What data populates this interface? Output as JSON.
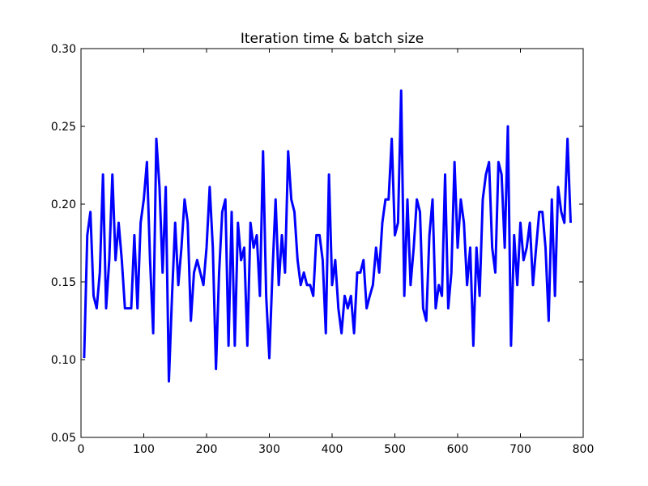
{
  "chart_data": {
    "type": "line",
    "title": "Iteration time & batch size",
    "xlabel": "",
    "ylabel": "",
    "xlim": [
      0,
      800
    ],
    "ylim": [
      0.05,
      0.3
    ],
    "xticks": [
      0,
      100,
      200,
      300,
      400,
      500,
      600,
      700,
      800
    ],
    "yticks": [
      0.05,
      0.1,
      0.15,
      0.2,
      0.25,
      0.3
    ],
    "xtick_labels": [
      "0",
      "100",
      "200",
      "300",
      "400",
      "500",
      "600",
      "700",
      "800"
    ],
    "ytick_labels": [
      "0.05",
      "0.10",
      "0.15",
      "0.20",
      "0.25",
      "0.30"
    ],
    "grid": false,
    "series": [
      {
        "color": "#0000ff",
        "x": [
          5,
          10,
          15,
          20,
          25,
          30,
          35,
          40,
          45,
          50,
          55,
          60,
          65,
          70,
          75,
          80,
          85,
          90,
          95,
          100,
          105,
          110,
          115,
          120,
          125,
          130,
          135,
          140,
          145,
          150,
          155,
          160,
          165,
          170,
          175,
          180,
          185,
          190,
          195,
          200,
          205,
          210,
          215,
          220,
          225,
          230,
          235,
          240,
          245,
          250,
          255,
          260,
          265,
          270,
          275,
          280,
          285,
          290,
          295,
          300,
          305,
          310,
          315,
          320,
          325,
          330,
          335,
          340,
          345,
          350,
          355,
          360,
          365,
          370,
          375,
          380,
          385,
          390,
          395,
          400,
          405,
          410,
          415,
          420,
          425,
          430,
          435,
          440,
          445,
          450,
          455,
          460,
          465,
          470,
          475,
          480,
          485,
          490,
          495,
          500,
          505,
          510,
          515,
          520,
          525,
          530,
          535,
          540,
          545,
          550,
          555,
          560,
          565,
          570,
          575,
          580,
          585,
          590,
          595,
          600,
          605,
          610,
          615,
          620,
          625,
          630,
          635,
          640,
          645,
          650,
          655,
          660,
          665,
          670,
          675,
          680,
          685,
          690,
          695,
          700,
          705,
          710,
          715,
          720,
          725,
          730,
          735,
          740,
          745,
          750,
          755,
          760,
          765,
          770,
          775,
          780
        ],
        "y": [
          0.101,
          0.18,
          0.195,
          0.141,
          0.133,
          0.156,
          0.219,
          0.133,
          0.164,
          0.219,
          0.164,
          0.188,
          0.164,
          0.133,
          0.133,
          0.133,
          0.18,
          0.133,
          0.188,
          0.203,
          0.227,
          0.164,
          0.117,
          0.242,
          0.211,
          0.156,
          0.211,
          0.086,
          0.141,
          0.188,
          0.148,
          0.172,
          0.203,
          0.188,
          0.125,
          0.156,
          0.164,
          0.156,
          0.148,
          0.172,
          0.211,
          0.172,
          0.094,
          0.156,
          0.195,
          0.203,
          0.109,
          0.195,
          0.109,
          0.188,
          0.164,
          0.172,
          0.109,
          0.188,
          0.172,
          0.18,
          0.141,
          0.234,
          0.141,
          0.101,
          0.156,
          0.203,
          0.148,
          0.18,
          0.156,
          0.234,
          0.203,
          0.195,
          0.164,
          0.148,
          0.156,
          0.148,
          0.148,
          0.141,
          0.18,
          0.18,
          0.164,
          0.117,
          0.219,
          0.148,
          0.164,
          0.133,
          0.117,
          0.141,
          0.133,
          0.141,
          0.117,
          0.156,
          0.156,
          0.164,
          0.133,
          0.141,
          0.148,
          0.172,
          0.156,
          0.188,
          0.203,
          0.203,
          0.242,
          0.18,
          0.188,
          0.273,
          0.141,
          0.203,
          0.148,
          0.172,
          0.203,
          0.195,
          0.133,
          0.125,
          0.18,
          0.203,
          0.133,
          0.148,
          0.141,
          0.219,
          0.133,
          0.156,
          0.227,
          0.172,
          0.203,
          0.188,
          0.148,
          0.172,
          0.109,
          0.172,
          0.141,
          0.203,
          0.219,
          0.227,
          0.172,
          0.156,
          0.227,
          0.219,
          0.172,
          0.25,
          0.109,
          0.18,
          0.148,
          0.188,
          0.164,
          0.172,
          0.188,
          0.148,
          0.172,
          0.195,
          0.195,
          0.172,
          0.125,
          0.203,
          0.141,
          0.211,
          0.195,
          0.188,
          0.242,
          0.188
        ]
      }
    ]
  }
}
